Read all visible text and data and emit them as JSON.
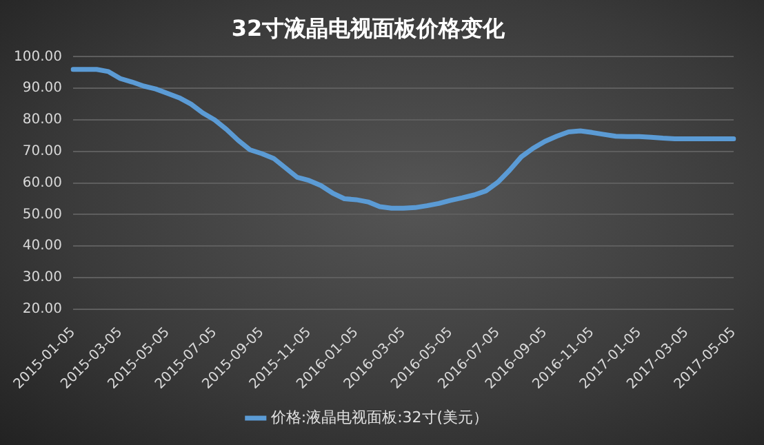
{
  "chart_data": {
    "type": "line",
    "title": "32寸液晶电视面板价格变化",
    "categories": [
      "2015-01-05",
      null,
      null,
      null,
      "2015-03-05",
      null,
      null,
      null,
      "2015-05-05",
      null,
      null,
      null,
      "2015-07-05",
      null,
      null,
      null,
      "2015-09-05",
      null,
      null,
      null,
      "2015-11-05",
      null,
      null,
      null,
      "2016-01-05",
      null,
      null,
      null,
      "2016-03-05",
      null,
      null,
      null,
      "2016-05-05",
      null,
      null,
      null,
      "2016-07-05",
      null,
      null,
      null,
      "2016-09-05",
      null,
      null,
      null,
      "2016-11-05",
      null,
      null,
      null,
      "2017-01-05",
      null,
      null,
      null,
      "2017-03-05",
      null,
      null,
      null,
      "2017-05-05"
    ],
    "series": [
      {
        "name": "价格:液晶电视面板:32寸(美元）",
        "color": "#5b9bd5",
        "values": [
          96,
          96,
          96,
          95.3,
          93.1,
          92,
          90.7,
          89.8,
          88.4,
          87,
          85,
          82.2,
          80,
          77,
          73.5,
          70.5,
          69.3,
          67.8,
          64.8,
          61.8,
          60.8,
          59.2,
          56.8,
          55,
          54.7,
          54,
          52.5,
          52,
          52,
          52.2,
          52.8,
          53.5,
          54.5,
          55.3,
          56.2,
          57.5,
          60.2,
          64,
          68.3,
          71,
          73.2,
          74.8,
          76.2,
          76.5,
          76,
          75.4,
          74.8,
          74.7,
          74.7,
          74.5,
          74.2,
          74,
          74,
          74,
          74,
          74,
          74
        ]
      }
    ],
    "ylim": [
      20,
      100
    ],
    "yticks": [
      {
        "value": 20,
        "label": "20.00"
      },
      {
        "value": 30,
        "label": "30.00"
      },
      {
        "value": 40,
        "label": "40.00"
      },
      {
        "value": 50,
        "label": "50.00"
      },
      {
        "value": 60,
        "label": "60.00"
      },
      {
        "value": 70,
        "label": "70.00"
      },
      {
        "value": 80,
        "label": "80.00"
      },
      {
        "value": 90,
        "label": "90.00"
      },
      {
        "value": 100,
        "label": "100.00"
      }
    ],
    "grid": "y",
    "legend": "bottom",
    "marker": "none",
    "line_style": "solid"
  }
}
